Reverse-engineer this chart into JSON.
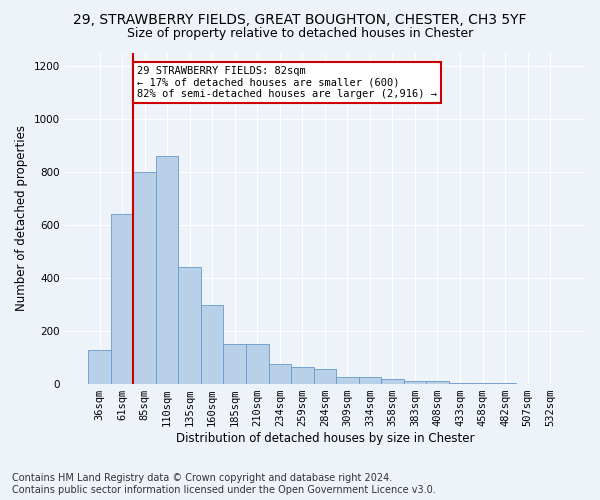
{
  "title": "29, STRAWBERRY FIELDS, GREAT BOUGHTON, CHESTER, CH3 5YF",
  "subtitle": "Size of property relative to detached houses in Chester",
  "xlabel": "Distribution of detached houses by size in Chester",
  "ylabel": "Number of detached properties",
  "categories": [
    "36sqm",
    "61sqm",
    "85sqm",
    "110sqm",
    "135sqm",
    "160sqm",
    "185sqm",
    "210sqm",
    "234sqm",
    "259sqm",
    "284sqm",
    "309sqm",
    "334sqm",
    "358sqm",
    "383sqm",
    "408sqm",
    "433sqm",
    "458sqm",
    "482sqm",
    "507sqm",
    "532sqm"
  ],
  "values": [
    130,
    640,
    800,
    860,
    440,
    300,
    150,
    150,
    75,
    65,
    55,
    28,
    28,
    20,
    12,
    10,
    5,
    5,
    3,
    2,
    2
  ],
  "bar_color": "#b8d0e8",
  "bar_edge_color": "#6699cc",
  "bar_edge_width": 0.6,
  "vline_x_index": 2,
  "vline_color": "#cc0000",
  "annotation_text": "29 STRAWBERRY FIELDS: 82sqm\n← 17% of detached houses are smaller (600)\n82% of semi-detached houses are larger (2,916) →",
  "annotation_box_color": "#ffffff",
  "annotation_box_edge_color": "#cc0000",
  "ylim": [
    0,
    1250
  ],
  "yticks": [
    0,
    200,
    400,
    600,
    800,
    1000,
    1200
  ],
  "footer_text": "Contains HM Land Registry data © Crown copyright and database right 2024.\nContains public sector information licensed under the Open Government Licence v3.0.",
  "bg_color": "#eef2f9",
  "plot_bg_color": "#eef2f9",
  "grid_color": "#ffffff",
  "title_fontsize": 10,
  "subtitle_fontsize": 9,
  "axis_label_fontsize": 8.5,
  "tick_fontsize": 7.5,
  "footer_fontsize": 7
}
